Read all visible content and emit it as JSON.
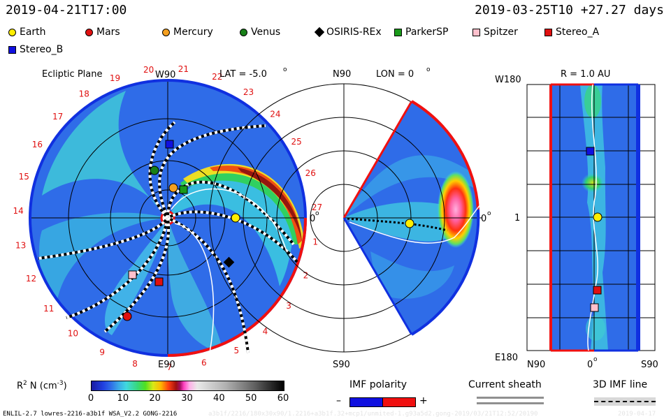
{
  "header": {
    "left_time": "2019-04-21T17:00",
    "right_time": "2019-03-25T10 +27.27 days"
  },
  "legend": [
    {
      "label": "Earth",
      "shape": "circle",
      "color": "#ffee00"
    },
    {
      "label": "Mars",
      "shape": "circle",
      "color": "#e01010"
    },
    {
      "label": "Mercury",
      "shape": "circle",
      "color": "#f5a020"
    },
    {
      "label": "Venus",
      "shape": "circle",
      "color": "#188018"
    },
    {
      "label": "OSIRIS-REx",
      "shape": "diamond",
      "color": "#000000"
    },
    {
      "label": "ParkerSP",
      "shape": "square",
      "color": "#1a9a1a"
    },
    {
      "label": "Spitzer",
      "shape": "square",
      "color": "#ffc0cc"
    },
    {
      "label": "Stereo_A",
      "shape": "square",
      "color": "#e01010"
    },
    {
      "label": "Stereo_B",
      "shape": "square",
      "color": "#1010e0"
    }
  ],
  "ecliptic": {
    "title": "Ecliptic Plane",
    "top_label": "W90",
    "bottom_label": "E90",
    "right_label": "0",
    "lat_label": "LAT = -5.0",
    "degree_sign": "o",
    "carrington_numbers": [
      "1",
      "2",
      "3",
      "4",
      "5",
      "6",
      "7",
      "8",
      "9",
      "10",
      "11",
      "12",
      "13",
      "14",
      "15",
      "16",
      "17",
      "18",
      "19",
      "20",
      "21",
      "22",
      "23",
      "24",
      "25",
      "26",
      "27"
    ]
  },
  "meridional": {
    "top_label": "N90",
    "bottom_label": "S90",
    "right_label": "0",
    "lon_label": "LON = 0",
    "degree_sign": "o"
  },
  "radial": {
    "title": "R = 1.0 AU",
    "top_left_label": "W180",
    "middle_left_label": "1",
    "bottom_left_label": "E180",
    "bottom_labels": [
      "N90",
      "0",
      "S90"
    ],
    "degree_sign": "o"
  },
  "colorbar": {
    "label_prefix": "R",
    "label_sup": "2",
    "label_mid": " N (cm",
    "label_sup2": "-3",
    "label_suffix": ")",
    "ticks": [
      "0",
      "10",
      "20",
      "30",
      "40",
      "50",
      "60"
    ],
    "min": 0,
    "max": 60
  },
  "imf": {
    "title": "IMF polarity",
    "minus": "–",
    "plus": "+",
    "negative_color": "#1010e0",
    "positive_color": "#f01010"
  },
  "current_sheath": {
    "title": "Current sheath"
  },
  "imf_line": {
    "title": "3D IMF line"
  },
  "footer": {
    "left": "ENLIL-2.7 lowres-2216-a3b1f WSA_V2.2 GONG-2216",
    "mid": "a3b1f/2216/180x30x90/1.2216+a3b1f.32+mcp1/unmited-1.g93a5d2.gong-2019/03/21T12:52/20190",
    "right": "2019-04-17"
  }
}
